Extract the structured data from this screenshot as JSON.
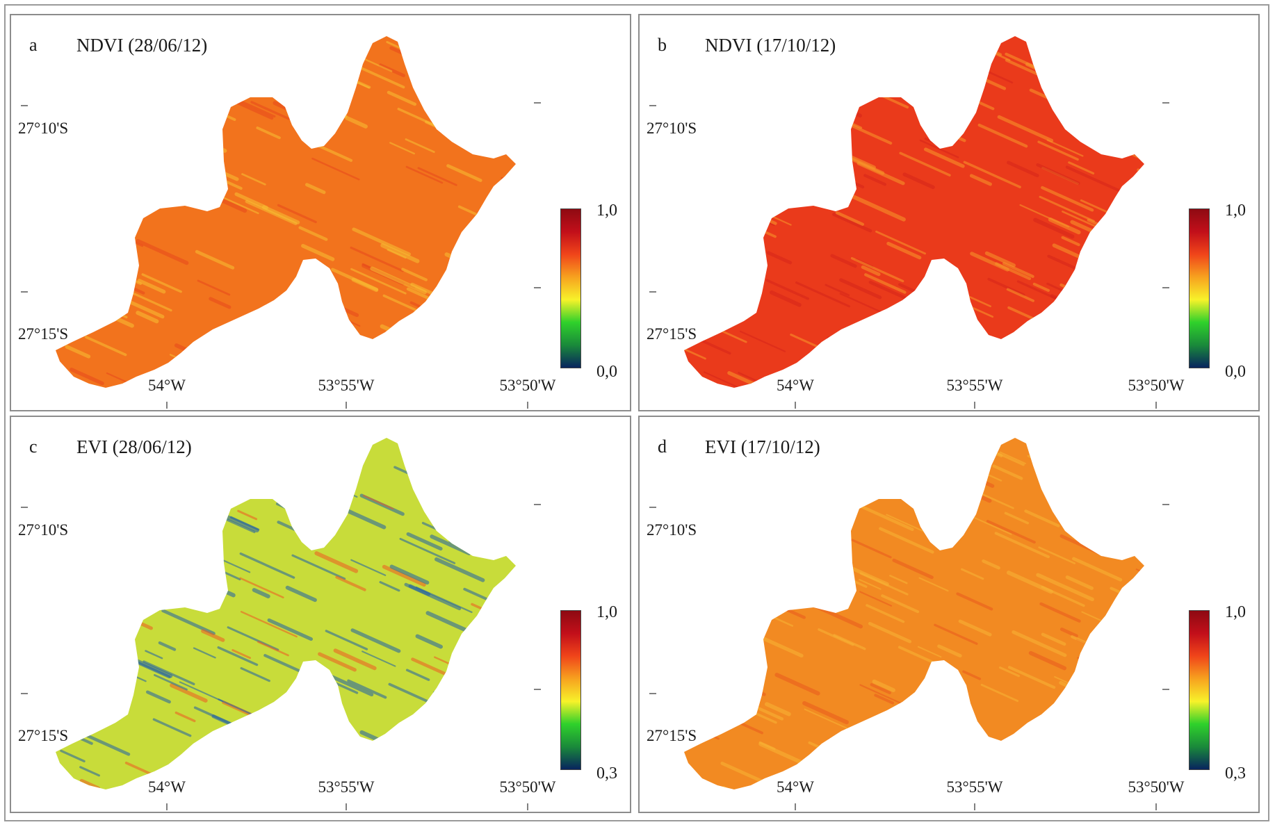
{
  "panels": [
    {
      "letter": "a",
      "title": "NDVI (28/06/12)",
      "lat_labels": [
        "27°10'S",
        "27°15'S"
      ],
      "lon_labels": [
        "54°W",
        "53°55'W",
        "53°50'W"
      ],
      "legend": {
        "max": "1,0",
        "min": "0,0"
      },
      "palette": {
        "base": "#f2731d",
        "streak": "#f7c033",
        "accent": "#e8481c"
      }
    },
    {
      "letter": "b",
      "title": "NDVI (17/10/12)",
      "lat_labels": [
        "27°10'S",
        "27°15'S"
      ],
      "lon_labels": [
        "54°W",
        "53°55'W",
        "53°50'W"
      ],
      "legend": {
        "max": "1,0",
        "min": "0,0"
      },
      "palette": {
        "base": "#ea3a1b",
        "streak": "#f79a2b",
        "accent": "#d5251a"
      }
    },
    {
      "letter": "c",
      "title": "EVI (28/06/12)",
      "lat_labels": [
        "27°10'S",
        "27°15'S"
      ],
      "lon_labels": [
        "54°W",
        "53°55'W",
        "53°50'W"
      ],
      "legend": {
        "max": "1,0",
        "min": "0,3"
      },
      "palette": {
        "base": "#c8dc3a",
        "streak": "#1f5fa8",
        "accent": "#ef5a22"
      }
    },
    {
      "letter": "d",
      "title": "EVI (17/10/12)",
      "lat_labels": [
        "27°10'S",
        "27°15'S"
      ],
      "lon_labels": [
        "54°W",
        "53°55'W",
        "53°50'W"
      ],
      "legend": {
        "max": "1,0",
        "min": "0,3"
      },
      "palette": {
        "base": "#f28a22",
        "streak": "#f8b436",
        "accent": "#ea5a1e"
      }
    }
  ],
  "colorbar": [
    "#08245e",
    "#1a8a3a",
    "#2fd12b",
    "#f7f22a",
    "#f7a21f",
    "#f0451a",
    "#c20f1a",
    "#8e0a12"
  ]
}
